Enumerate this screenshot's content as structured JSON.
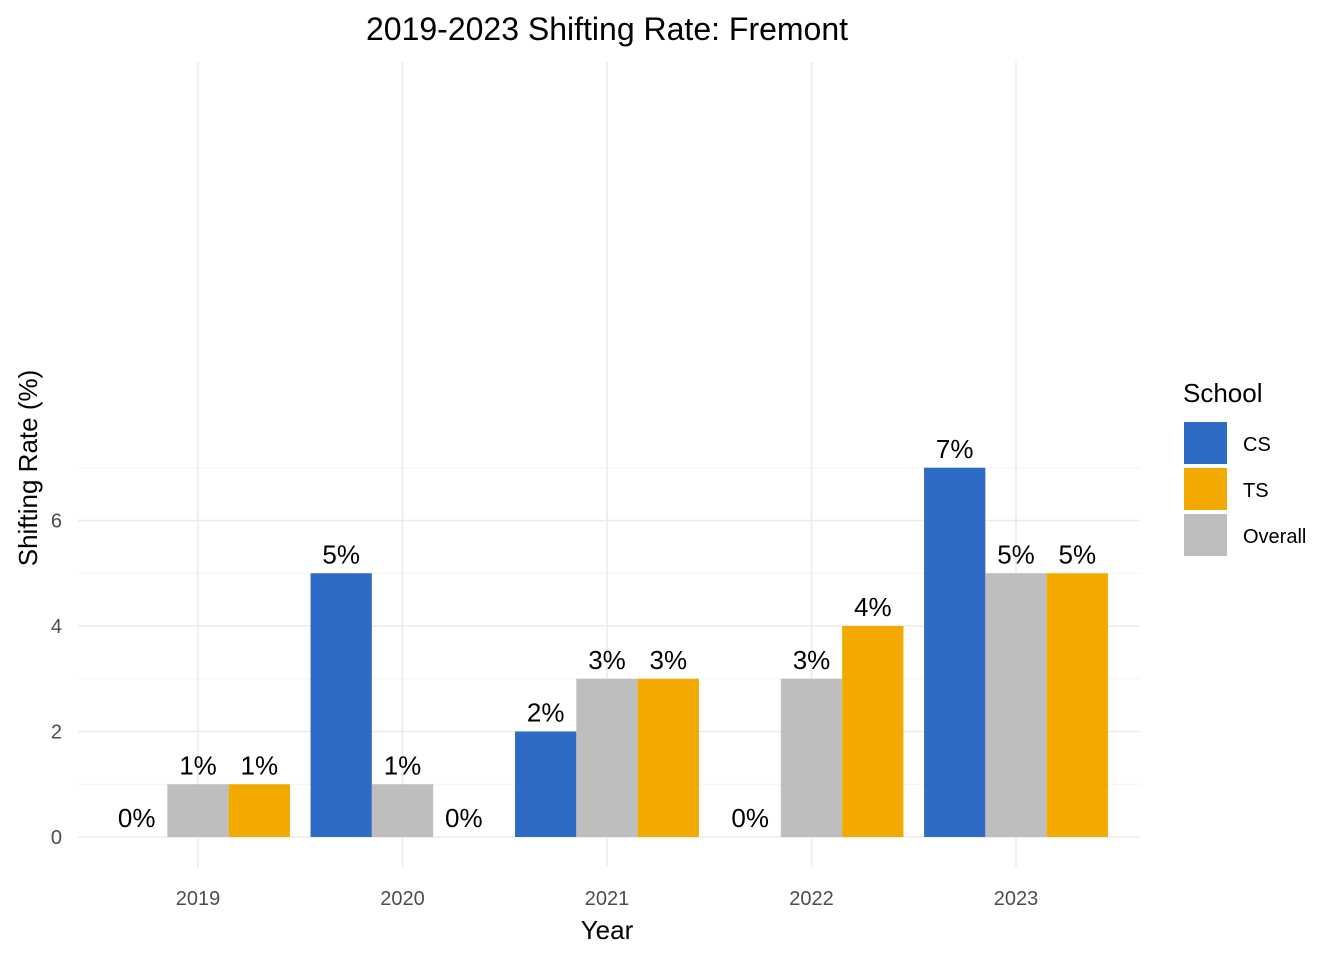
{
  "chart_data": {
    "type": "bar",
    "title": "2019-2023 Shifting Rate: Fremont",
    "xlabel": "Year",
    "ylabel": "Shifting Rate (%)",
    "categories": [
      "2019",
      "2020",
      "2021",
      "2022",
      "2023"
    ],
    "series": [
      {
        "name": "CS",
        "color": "#2e6bc6",
        "values": [
          0,
          5,
          2,
          0,
          7
        ],
        "labels": [
          "0%",
          "5%",
          "2%",
          "0%",
          "7%"
        ]
      },
      {
        "name": "Overall",
        "color": "#bebebe",
        "values": [
          1,
          1,
          3,
          3,
          5
        ],
        "labels": [
          "1%",
          "1%",
          "3%",
          "3%",
          "5%"
        ]
      },
      {
        "name": "TS",
        "color": "#f2aa00",
        "values": [
          1,
          0,
          3,
          4,
          5
        ],
        "labels": [
          "1%",
          "0%",
          "3%",
          "4%",
          "5%"
        ]
      }
    ],
    "ylim": [
      0,
      7.35
    ],
    "yticks": [
      0,
      2,
      4,
      6
    ],
    "ytick_labels": [
      "0",
      "2",
      "4",
      "6"
    ],
    "grid": true,
    "legend": {
      "title": "School",
      "position": "right",
      "entries": [
        {
          "name": "CS",
          "color": "#2e6bc6"
        },
        {
          "name": "TS",
          "color": "#f2aa00"
        },
        {
          "name": "Overall",
          "color": "#bebebe"
        }
      ]
    }
  }
}
